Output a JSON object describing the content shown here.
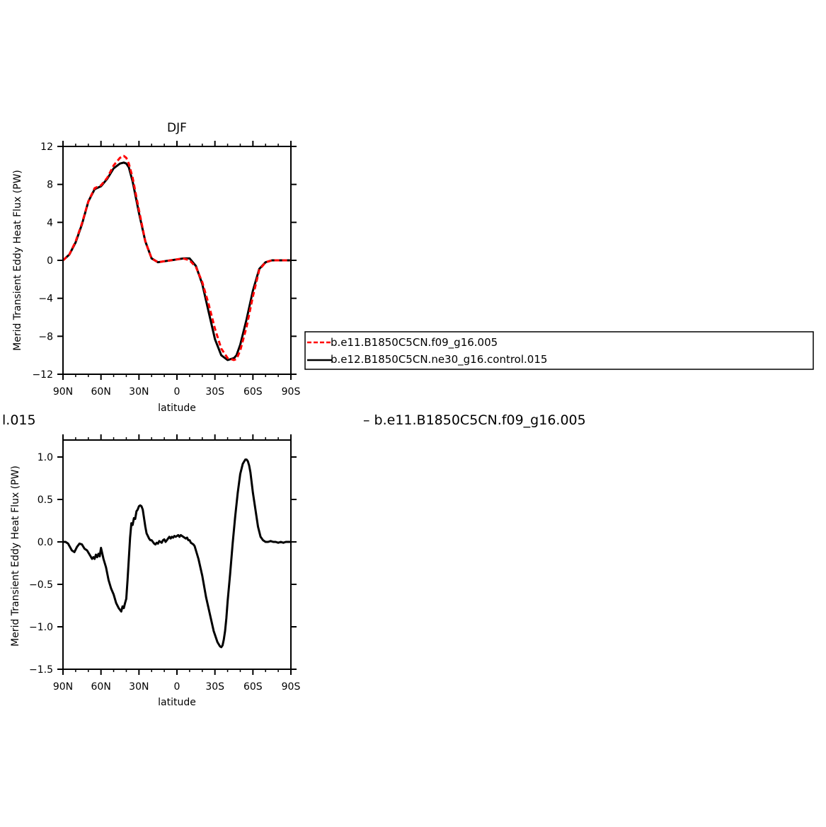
{
  "fragments": {
    "left": "l.015",
    "right": "– b.e11.B1850C5CN.f09_g16.005"
  },
  "legend": {
    "items": [
      {
        "label": "b.e11.B1850C5CN.f09_g16.005",
        "color": "#ff0000",
        "dash": true
      },
      {
        "label": "b.e12.B1850C5CN.ne30_g16.control.015",
        "color": "#000000",
        "dash": false
      }
    ]
  },
  "chart_data": [
    {
      "type": "line",
      "title": "DJF",
      "xlabel": "latitude",
      "ylabel": "Merid Transient Eddy Heat Flux (PW)",
      "xlim": [
        90,
        -90
      ],
      "ylim": [
        -12,
        12
      ],
      "xticks": [
        {
          "value": 90,
          "label": "90N"
        },
        {
          "value": 60,
          "label": "60N"
        },
        {
          "value": 30,
          "label": "30N"
        },
        {
          "value": 0,
          "label": "0"
        },
        {
          "value": -30,
          "label": "30S"
        },
        {
          "value": -60,
          "label": "60S"
        },
        {
          "value": -90,
          "label": "90S"
        }
      ],
      "yticks": [
        {
          "value": 12,
          "label": "12"
        },
        {
          "value": 8,
          "label": "8"
        },
        {
          "value": 4,
          "label": "4"
        },
        {
          "value": 0,
          "label": "0"
        },
        {
          "value": -4,
          "label": "−4"
        },
        {
          "value": -8,
          "label": "−8"
        },
        {
          "value": -12,
          "label": "−12"
        }
      ],
      "series": [
        {
          "name": "b.e11.B1850C5CN.f09_g16.005",
          "color": "#ff0000",
          "dash": true,
          "x": [
            90,
            85,
            80,
            75,
            70,
            65,
            60,
            55,
            50,
            45,
            42,
            40,
            38,
            35,
            30,
            25,
            20,
            15,
            10,
            5,
            0,
            -5,
            -10,
            -15,
            -20,
            -25,
            -30,
            -35,
            -40,
            -45,
            -47,
            -50,
            -55,
            -60,
            -65,
            -70,
            -75,
            -80,
            -85,
            -90
          ],
          "y": [
            0,
            0.6,
            2.0,
            3.9,
            6.2,
            7.6,
            7.9,
            8.7,
            10.0,
            10.8,
            11.0,
            10.8,
            10.2,
            8.7,
            5.3,
            2.0,
            0.2,
            -0.2,
            -0.1,
            0,
            0.1,
            0.2,
            0,
            -0.7,
            -2.3,
            -4.6,
            -7.2,
            -9.3,
            -10.3,
            -10.5,
            -10.4,
            -9.5,
            -7.0,
            -3.8,
            -1.0,
            -0.2,
            0,
            0,
            0,
            0
          ]
        },
        {
          "name": "b.e12.B1850C5CN.ne30_g16.control.015",
          "color": "#000000",
          "dash": false,
          "x": [
            90,
            85,
            80,
            75,
            70,
            65,
            60,
            55,
            50,
            45,
            42,
            40,
            38,
            35,
            30,
            25,
            20,
            15,
            10,
            5,
            0,
            -5,
            -10,
            -15,
            -20,
            -25,
            -30,
            -35,
            -40,
            -45,
            -47,
            -50,
            -55,
            -60,
            -65,
            -70,
            -75,
            -80,
            -85,
            -90
          ],
          "y": [
            0,
            0.6,
            1.9,
            3.8,
            6.2,
            7.5,
            7.8,
            8.6,
            9.7,
            10.2,
            10.3,
            10.2,
            9.8,
            8.3,
            5.0,
            2.0,
            0.2,
            -0.2,
            -0.1,
            0,
            0.1,
            0.2,
            0.2,
            -0.6,
            -2.5,
            -5.4,
            -8.3,
            -10.0,
            -10.5,
            -10.3,
            -10.0,
            -8.9,
            -6.2,
            -3.2,
            -0.9,
            -0.2,
            0,
            0,
            0,
            0
          ]
        }
      ]
    },
    {
      "type": "line",
      "title": "",
      "xlabel": "latitude",
      "ylabel": "Merid Transient Eddy Heat Flux (PW)",
      "xlim": [
        90,
        -90
      ],
      "ylim": [
        -1.5,
        1.2
      ],
      "xticks": [
        {
          "value": 90,
          "label": "90N"
        },
        {
          "value": 60,
          "label": "60N"
        },
        {
          "value": 30,
          "label": "30N"
        },
        {
          "value": 0,
          "label": "0"
        },
        {
          "value": -30,
          "label": "30S"
        },
        {
          "value": -60,
          "label": "60S"
        },
        {
          "value": -90,
          "label": "90S"
        }
      ],
      "yticks": [
        {
          "value": 1.0,
          "label": "1.0"
        },
        {
          "value": 0.5,
          "label": "0.5"
        },
        {
          "value": 0.0,
          "label": "0.0"
        },
        {
          "value": -0.5,
          "label": "−0.5"
        },
        {
          "value": -1.0,
          "label": "−1.0"
        },
        {
          "value": -1.5,
          "label": "−1.5"
        }
      ],
      "series": [
        {
          "color": "#000000",
          "dash": false,
          "x": [
            90,
            88,
            86,
            83,
            81,
            79,
            77,
            75,
            73,
            71,
            69,
            67,
            66,
            65,
            64,
            63,
            62,
            61,
            60,
            58,
            56,
            54,
            52,
            50,
            48,
            46,
            45,
            44,
            43,
            42,
            41,
            40,
            39,
            38,
            37,
            36,
            35,
            34,
            33,
            32,
            31,
            30,
            29,
            28,
            27,
            26,
            25,
            24,
            23,
            22,
            21,
            20,
            19,
            18,
            17,
            16,
            15,
            14,
            13,
            12,
            11,
            10,
            9,
            8,
            7,
            6,
            5,
            4,
            3,
            2,
            1,
            0,
            -1,
            -2,
            -3,
            -4,
            -5,
            -6,
            -7,
            -8,
            -9,
            -10,
            -11,
            -12,
            -13,
            -14,
            -15,
            -17,
            -20,
            -23,
            -26,
            -29,
            -32,
            -34,
            -35,
            -36,
            -37,
            -38,
            -39,
            -40,
            -42,
            -44,
            -46,
            -48,
            -50,
            -52,
            -54,
            -55,
            -56,
            -57,
            -58,
            -60,
            -62,
            -64,
            -66,
            -68,
            -70,
            -72,
            -74,
            -76,
            -78,
            -80,
            -82,
            -84,
            -86,
            -88,
            -90
          ],
          "y": [
            0,
            0,
            -0.02,
            -0.1,
            -0.12,
            -0.06,
            -0.02,
            -0.03,
            -0.08,
            -0.1,
            -0.15,
            -0.2,
            -0.18,
            -0.2,
            -0.15,
            -0.18,
            -0.14,
            -0.17,
            -0.07,
            -0.2,
            -0.3,
            -0.45,
            -0.55,
            -0.62,
            -0.72,
            -0.78,
            -0.8,
            -0.82,
            -0.76,
            -0.78,
            -0.72,
            -0.67,
            -0.45,
            -0.2,
            0.05,
            0.22,
            0.2,
            0.28,
            0.27,
            0.36,
            0.38,
            0.42,
            0.43,
            0.42,
            0.38,
            0.28,
            0.18,
            0.1,
            0.07,
            0.04,
            0.02,
            0.02,
            0.0,
            -0.02,
            -0.03,
            -0.01,
            -0.02,
            0.01,
            0.0,
            -0.01,
            0.02,
            0.03,
            0.0,
            0.02,
            0.04,
            0.06,
            0.04,
            0.06,
            0.05,
            0.07,
            0.06,
            0.07,
            0.08,
            0.06,
            0.08,
            0.07,
            0.06,
            0.05,
            0.04,
            0.05,
            0.02,
            0.02,
            -0.01,
            -0.02,
            -0.03,
            -0.05,
            -0.1,
            -0.2,
            -0.4,
            -0.65,
            -0.85,
            -1.05,
            -1.18,
            -1.23,
            -1.24,
            -1.22,
            -1.15,
            -1.05,
            -0.9,
            -0.7,
            -0.38,
            -0.02,
            0.3,
            0.58,
            0.8,
            0.92,
            0.97,
            0.97,
            0.95,
            0.9,
            0.82,
            0.58,
            0.38,
            0.18,
            0.06,
            0.02,
            0.0,
            0.0,
            0.01,
            0.0,
            0.0,
            -0.01,
            0.0,
            -0.01,
            0.0,
            0.0,
            0.0
          ]
        }
      ]
    }
  ]
}
